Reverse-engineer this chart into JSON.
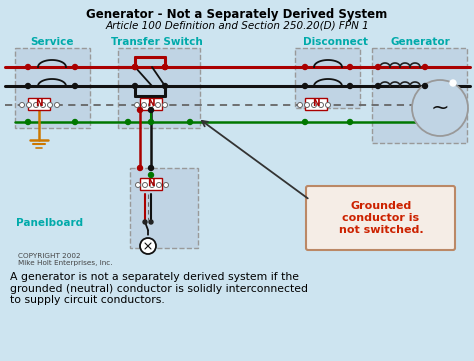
{
  "bg_color": "#cde4f0",
  "title1": "Generator - Not a Separately Derived System",
  "title2": "Article 100 Definition and Section 250.20(D) FPN 1",
  "label_service": "Service",
  "label_transfer": "Transfer Switch",
  "label_disconnect": "Disconnect",
  "label_generator": "Generator",
  "label_panelboard": "Panelboard",
  "label_color": "#00aaaa",
  "label_grounded": "Grounded\nconductor is\nnot switched.",
  "label_grounded_color": "#cc2200",
  "caption": "A generator is not a separately derived system if the\ngrounded (neutral) conductor is solidly interconnected\nto supply circuit conductors.",
  "copyright": "COPYRIGHT 2002\nMike Holt Enterprises, Inc.",
  "box_bg": "#c0d4e4",
  "box_border": "#999999",
  "wire_red": "#aa0000",
  "wire_dark": "#222222",
  "wire_black": "#111111",
  "wire_green": "#007700",
  "wire_dashed_color": "#666666",
  "wire_orange": "#cc7700",
  "note_bg": "#f5ede6",
  "note_border": "#bb8866"
}
